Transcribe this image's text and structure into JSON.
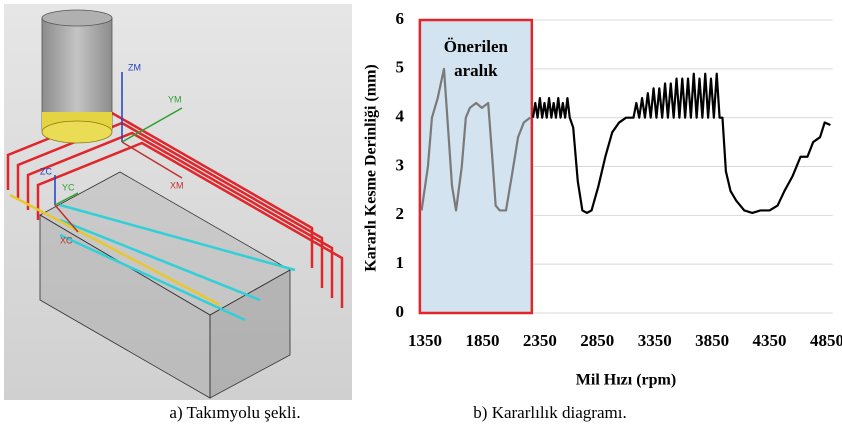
{
  "cad_figure": {
    "labels": [
      "ZM",
      "YM",
      "XM",
      "ZC",
      "YC",
      "XC"
    ],
    "caption": "a) Takımyolu şekli."
  },
  "chart_data": {
    "type": "line",
    "caption": "b) Kararlılık diagramı.",
    "x_label": "Mil Hızı (rpm)",
    "y_label": "Kararlı Kesme Derinliği (mm)",
    "xlim": [
      1300,
      4900
    ],
    "xticks": [
      1350,
      1850,
      2350,
      2850,
      3350,
      3850,
      4350,
      4850
    ],
    "ylim": [
      0,
      6
    ],
    "yticks": [
      0,
      1,
      2,
      3,
      4,
      5,
      6
    ],
    "grid": true,
    "highlight": {
      "label_lines": [
        "Önerilen",
        "aralık"
      ],
      "xlim": [
        1305,
        2280
      ],
      "fill": "#d3e3ef",
      "border": "#e0262b"
    },
    "series": [
      {
        "color": "#7a7a7a",
        "x": [
          1320,
          1375,
          1410,
          1460,
          1515,
          1550,
          1585,
          1620,
          1670,
          1705,
          1740,
          1795,
          1845,
          1900,
          1935,
          1965,
          2000,
          2055,
          2105,
          2160,
          2210,
          2265
        ],
        "values": [
          2.1,
          3.0,
          4.0,
          4.4,
          5.0,
          3.8,
          2.6,
          2.1,
          3.0,
          4.0,
          4.2,
          4.3,
          4.2,
          4.3,
          3.2,
          2.2,
          2.1,
          2.1,
          2.8,
          3.6,
          3.9,
          4.0
        ]
      },
      {
        "color": "#000000",
        "x": [
          2290,
          2310,
          2330,
          2350,
          2370,
          2390,
          2410,
          2430,
          2450,
          2470,
          2490,
          2510,
          2530,
          2550,
          2570,
          2590,
          2610,
          2640,
          2680,
          2720,
          2760,
          2800,
          2860,
          2920,
          2980,
          3040,
          3100,
          3150,
          3165,
          3190,
          3215,
          3240,
          3265,
          3290,
          3315,
          3340,
          3365,
          3390,
          3415,
          3440,
          3465,
          3490,
          3515,
          3540,
          3565,
          3590,
          3615,
          3640,
          3665,
          3690,
          3715,
          3740,
          3765,
          3790,
          3815,
          3840,
          3865,
          3890,
          3915,
          3940,
          3970,
          4010,
          4060,
          4130,
          4200,
          4270,
          4350,
          4420,
          4480,
          4550,
          4620,
          4680,
          4730,
          4790,
          4830,
          4880
        ],
        "values": [
          4.0,
          4.3,
          4.0,
          4.4,
          4.0,
          4.3,
          4.0,
          4.4,
          4.0,
          4.3,
          4.0,
          4.4,
          4.0,
          4.3,
          4.0,
          4.4,
          4.0,
          3.8,
          2.7,
          2.1,
          2.05,
          2.1,
          2.6,
          3.2,
          3.7,
          3.9,
          4.0,
          4.0,
          4.0,
          4.3,
          4.0,
          4.4,
          4.0,
          4.5,
          4.0,
          4.6,
          4.0,
          4.6,
          4.0,
          4.7,
          4.0,
          4.7,
          4.0,
          4.8,
          4.0,
          4.8,
          4.0,
          4.8,
          4.0,
          4.9,
          4.0,
          4.8,
          4.0,
          4.9,
          4.0,
          4.8,
          4.0,
          4.9,
          4.0,
          4.0,
          2.9,
          2.5,
          2.3,
          2.1,
          2.05,
          2.1,
          2.1,
          2.2,
          2.5,
          2.8,
          3.2,
          3.2,
          3.5,
          3.6,
          3.9,
          3.85
        ]
      }
    ]
  }
}
